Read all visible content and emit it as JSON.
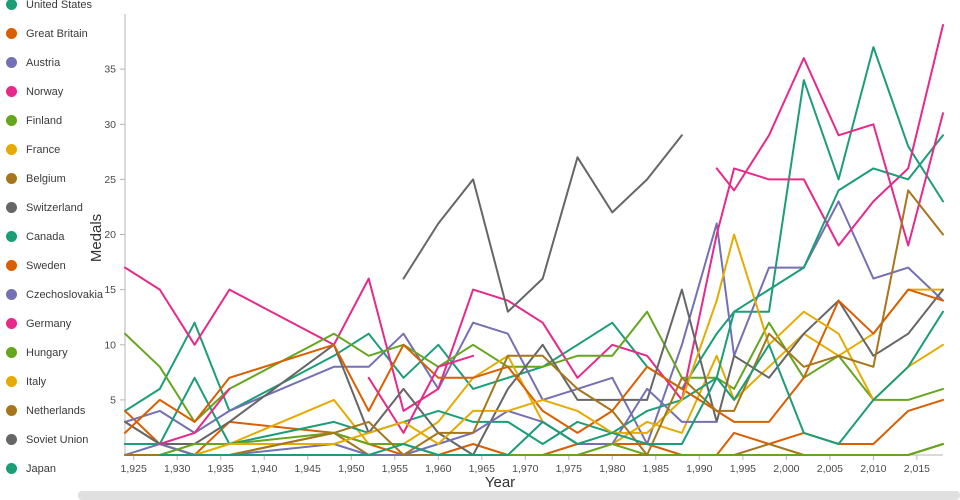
{
  "chart_data": {
    "type": "line",
    "title": "",
    "xlabel": "Year",
    "ylabel": "Medals",
    "x_domain": [
      1924,
      2018
    ],
    "y_domain": [
      0,
      40
    ],
    "grid": false,
    "legend_position": "left",
    "x": [
      1924,
      1928,
      1932,
      1936,
      1948,
      1952,
      1956,
      1960,
      1964,
      1968,
      1972,
      1976,
      1980,
      1984,
      1988,
      1992,
      1994,
      1998,
      2002,
      2006,
      2010,
      2014,
      2018
    ],
    "x_ticks": [
      {
        "v": 1925,
        "label": "1,925"
      },
      {
        "v": 1930,
        "label": "1,930"
      },
      {
        "v": 1935,
        "label": "1,935"
      },
      {
        "v": 1940,
        "label": "1,940"
      },
      {
        "v": 1945,
        "label": "1,945"
      },
      {
        "v": 1950,
        "label": "1,950"
      },
      {
        "v": 1955,
        "label": "1,955"
      },
      {
        "v": 1960,
        "label": "1,960"
      },
      {
        "v": 1965,
        "label": "1,965"
      },
      {
        "v": 1970,
        "label": "1,970"
      },
      {
        "v": 1975,
        "label": "1,975"
      },
      {
        "v": 1980,
        "label": "1,980"
      },
      {
        "v": 1985,
        "label": "1,985"
      },
      {
        "v": 1990,
        "label": "1,990"
      },
      {
        "v": 1995,
        "label": "1,995"
      },
      {
        "v": 2000,
        "label": "2,000"
      },
      {
        "v": 2005,
        "label": "2,005"
      },
      {
        "v": 2010,
        "label": "2,010"
      },
      {
        "v": 2015,
        "label": "2,015"
      }
    ],
    "y_ticks": [
      {
        "v": 5,
        "label": "5"
      },
      {
        "v": 10,
        "label": "10"
      },
      {
        "v": 15,
        "label": "15"
      },
      {
        "v": 20,
        "label": "20"
      },
      {
        "v": 25,
        "label": "25"
      },
      {
        "v": 30,
        "label": "30"
      },
      {
        "v": 35,
        "label": "35"
      }
    ],
    "series": [
      {
        "name": "United States",
        "color": "#1b9e77",
        "values": [
          4,
          6,
          12,
          4,
          9,
          11,
          7,
          10,
          6,
          7,
          8,
          10,
          12,
          8,
          6,
          11,
          13,
          13,
          34,
          25,
          37,
          28,
          23
        ]
      },
      {
        "name": "Great Britain",
        "color": "#d95f02",
        "values": [
          4,
          1,
          0,
          3,
          2,
          1,
          0,
          0,
          1,
          0,
          0,
          1,
          1,
          1,
          0,
          0,
          2,
          1,
          2,
          1,
          1,
          4,
          5
        ]
      },
      {
        "name": "Austria",
        "color": "#7570b3",
        "values": [
          3,
          4,
          2,
          4,
          8,
          8,
          11,
          6,
          12,
          11,
          5,
          6,
          7,
          1,
          10,
          21,
          9,
          17,
          17,
          23,
          16,
          17,
          14
        ]
      },
      {
        "name": "Norway",
        "color": "#e7298a",
        "values": [
          17,
          15,
          10,
          15,
          10,
          16,
          4,
          6,
          15,
          14,
          12,
          7,
          10,
          9,
          5,
          20,
          26,
          25,
          25,
          19,
          23,
          26,
          39
        ]
      },
      {
        "name": "Finland",
        "color": "#66a61e",
        "values": [
          11,
          8,
          3,
          6,
          11,
          9,
          10,
          8,
          10,
          8,
          8,
          9,
          9,
          13,
          7,
          7,
          6,
          12,
          7,
          9,
          5,
          5,
          6
        ]
      },
      {
        "name": "France",
        "color": "#e6ab02",
        "values": [
          3,
          1,
          1,
          1,
          5,
          1,
          1,
          3,
          7,
          9,
          3,
          1,
          1,
          3,
          2,
          9,
          5,
          8,
          11,
          9,
          11,
          15,
          15
        ]
      },
      {
        "name": "Belgium",
        "color": "#a6761d",
        "values": [
          1,
          1,
          0,
          0,
          2,
          0,
          0,
          0,
          0,
          0,
          0,
          0,
          0,
          0,
          0,
          0,
          0,
          1,
          0,
          0,
          0,
          0,
          1
        ]
      },
      {
        "name": "Switzerland",
        "color": "#666666",
        "values": [
          3,
          1,
          1,
          3,
          10,
          2,
          6,
          2,
          0,
          6,
          10,
          5,
          5,
          5,
          15,
          3,
          9,
          7,
          11,
          14,
          9,
          11,
          15
        ]
      },
      {
        "name": "Canada",
        "color": "#1b9e77",
        "values": [
          1,
          1,
          7,
          1,
          3,
          2,
          3,
          4,
          3,
          3,
          1,
          3,
          2,
          4,
          5,
          7,
          13,
          15,
          17,
          24,
          26,
          25,
          29
        ]
      },
      {
        "name": "Sweden",
        "color": "#d95f02",
        "values": [
          2,
          5,
          3,
          7,
          10,
          4,
          10,
          7,
          7,
          8,
          4,
          2,
          4,
          8,
          6,
          4,
          3,
          3,
          7,
          14,
          11,
          15,
          14
        ]
      },
      {
        "name": "Czechoslovakia",
        "color": "#7570b3",
        "values": [
          0,
          1,
          0,
          0,
          1,
          0,
          0,
          1,
          2,
          4,
          3,
          1,
          1,
          6,
          3,
          3,
          null,
          null,
          null,
          null,
          null,
          null,
          null
        ]
      },
      {
        "name": "Germany",
        "color": "#e7298a",
        "values": [
          null,
          1,
          2,
          6,
          null,
          7,
          2,
          8,
          9,
          null,
          null,
          null,
          null,
          null,
          null,
          26,
          24,
          29,
          36,
          29,
          30,
          19,
          31
        ]
      },
      {
        "name": "Hungary",
        "color": "#66a61e",
        "values": [
          0,
          0,
          1,
          1,
          2,
          1,
          1,
          0,
          0,
          0,
          0,
          0,
          1,
          0,
          0,
          0,
          0,
          0,
          0,
          0,
          0,
          0,
          1
        ]
      },
      {
        "name": "Italy",
        "color": "#e6ab02",
        "values": [
          0,
          0,
          0,
          1,
          1,
          2,
          3,
          1,
          4,
          4,
          5,
          4,
          2,
          2,
          5,
          14,
          20,
          10,
          13,
          11,
          5,
          8,
          10
        ]
      },
      {
        "name": "Netherlands",
        "color": "#a6761d",
        "values": [
          0,
          0,
          0,
          0,
          2,
          3,
          0,
          2,
          2,
          9,
          9,
          6,
          4,
          0,
          7,
          4,
          4,
          11,
          8,
          9,
          8,
          24,
          20
        ]
      },
      {
        "name": "Soviet Union",
        "color": "#666666",
        "values": [
          null,
          null,
          null,
          null,
          null,
          null,
          16,
          21,
          25,
          13,
          16,
          27,
          22,
          25,
          29,
          null,
          null,
          null,
          null,
          null,
          null,
          null,
          null
        ]
      },
      {
        "name": "Japan",
        "color": "#1b9e77",
        "values": [
          null,
          0,
          0,
          0,
          0,
          0,
          1,
          0,
          0,
          0,
          3,
          1,
          2,
          1,
          1,
          7,
          5,
          10,
          2,
          1,
          5,
          8,
          13
        ]
      }
    ]
  }
}
